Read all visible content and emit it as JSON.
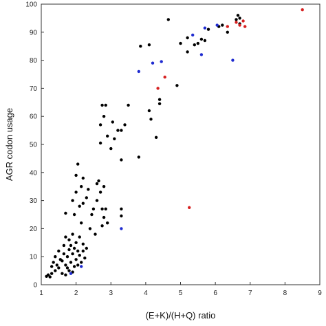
{
  "chart_data": {
    "type": "scatter",
    "title": "",
    "xlabel": "(E+K)/(H+Q) ratio",
    "ylabel": "AGR codon usage",
    "xlim": [
      1,
      9
    ],
    "ylim": [
      0,
      100
    ],
    "xticks": [
      "1",
      "2",
      "3",
      "4",
      "5",
      "6",
      "7",
      "8",
      "9"
    ],
    "yticks": [
      "0",
      "10",
      "20",
      "30",
      "40",
      "50",
      "60",
      "70",
      "80",
      "90",
      "100"
    ],
    "grid": false,
    "legend": "none",
    "series": [
      {
        "color": "#000000",
        "points": [
          [
            1.15,
            3.0
          ],
          [
            1.2,
            3.5
          ],
          [
            1.25,
            2.8
          ],
          [
            1.3,
            4.0
          ],
          [
            1.3,
            6.5
          ],
          [
            1.35,
            8.0
          ],
          [
            1.4,
            5.0
          ],
          [
            1.4,
            10.0
          ],
          [
            1.45,
            7.0
          ],
          [
            1.5,
            6.0
          ],
          [
            1.5,
            12.0
          ],
          [
            1.55,
            9.0
          ],
          [
            1.6,
            4.0
          ],
          [
            1.6,
            8.5
          ],
          [
            1.65,
            11.0
          ],
          [
            1.65,
            14.0
          ],
          [
            1.7,
            3.5
          ],
          [
            1.7,
            7.0
          ],
          [
            1.7,
            17.0
          ],
          [
            1.75,
            6.0
          ],
          [
            1.75,
            10.0
          ],
          [
            1.8,
            5.0
          ],
          [
            1.8,
            12.5
          ],
          [
            1.8,
            16.0
          ],
          [
            1.85,
            8.0
          ],
          [
            1.85,
            14.0
          ],
          [
            1.9,
            4.5
          ],
          [
            1.9,
            11.0
          ],
          [
            1.9,
            18.0
          ],
          [
            1.95,
            6.5
          ],
          [
            1.95,
            13.0
          ],
          [
            2.0,
            9.0
          ],
          [
            2.0,
            15.0
          ],
          [
            2.05,
            7.0
          ],
          [
            2.05,
            12.0
          ],
          [
            2.1,
            10.5
          ],
          [
            2.1,
            17.0
          ],
          [
            2.15,
            8.0
          ],
          [
            2.2,
            12.0
          ],
          [
            2.2,
            14.5
          ],
          [
            2.25,
            9.5
          ],
          [
            2.3,
            13.0
          ],
          [
            1.7,
            25.5
          ],
          [
            1.9,
            30.0
          ],
          [
            1.95,
            25.0
          ],
          [
            2.0,
            33.0
          ],
          [
            2.0,
            39.0
          ],
          [
            2.05,
            43.0
          ],
          [
            2.1,
            28.0
          ],
          [
            2.15,
            22.0
          ],
          [
            2.15,
            35.0
          ],
          [
            2.2,
            38.0
          ],
          [
            2.2,
            29.0
          ],
          [
            2.3,
            31.0
          ],
          [
            2.35,
            34.0
          ],
          [
            2.4,
            20.0
          ],
          [
            2.45,
            25.0
          ],
          [
            2.5,
            27.0
          ],
          [
            2.55,
            18.0
          ],
          [
            2.6,
            30.0
          ],
          [
            2.6,
            36.0
          ],
          [
            2.65,
            37.0
          ],
          [
            2.7,
            33.0
          ],
          [
            2.75,
            21.0
          ],
          [
            2.75,
            27.0
          ],
          [
            2.8,
            24.0
          ],
          [
            2.8,
            35.0
          ],
          [
            2.85,
            27.0
          ],
          [
            2.9,
            22.0
          ],
          [
            2.7,
            50.5
          ],
          [
            2.7,
            57.0
          ],
          [
            2.75,
            64.0
          ],
          [
            2.8,
            60.0
          ],
          [
            2.85,
            64.0
          ],
          [
            2.9,
            53.0
          ],
          [
            3.0,
            48.5
          ],
          [
            3.05,
            58.0
          ],
          [
            3.1,
            52.0
          ],
          [
            3.2,
            55.0
          ],
          [
            3.3,
            55.0
          ],
          [
            3.3,
            44.5
          ],
          [
            3.4,
            57.0
          ],
          [
            3.5,
            64.0
          ],
          [
            3.3,
            27.0
          ],
          [
            3.3,
            24.5
          ],
          [
            3.85,
            85.0
          ],
          [
            3.8,
            45.5
          ],
          [
            4.1,
            85.5
          ],
          [
            4.1,
            62.0
          ],
          [
            4.15,
            59.0
          ],
          [
            4.3,
            52.5
          ],
          [
            4.4,
            66.0
          ],
          [
            4.4,
            64.5
          ],
          [
            4.65,
            94.5
          ],
          [
            4.9,
            71.0
          ],
          [
            5.0,
            86.0
          ],
          [
            5.2,
            88.0
          ],
          [
            5.2,
            83.0
          ],
          [
            5.4,
            85.5
          ],
          [
            5.5,
            86.0
          ],
          [
            5.6,
            87.5
          ],
          [
            5.7,
            87.0
          ],
          [
            5.8,
            91.0
          ],
          [
            6.1,
            92.0
          ],
          [
            6.2,
            92.5
          ],
          [
            6.35,
            90.0
          ],
          [
            6.6,
            94.5
          ],
          [
            6.65,
            96.0
          ],
          [
            6.7,
            95.0
          ],
          [
            6.7,
            93.0
          ]
        ]
      },
      {
        "color": "#1f2bd0",
        "points": [
          [
            1.85,
            4.0
          ],
          [
            2.15,
            6.5
          ],
          [
            3.3,
            20.0
          ],
          [
            3.8,
            76.0
          ],
          [
            4.2,
            79.0
          ],
          [
            4.45,
            79.5
          ],
          [
            5.35,
            89.0
          ],
          [
            5.6,
            82.0
          ],
          [
            5.7,
            91.5
          ],
          [
            6.05,
            92.5
          ],
          [
            6.5,
            80.0
          ]
        ]
      },
      {
        "color": "#d62020",
        "points": [
          [
            4.35,
            70.0
          ],
          [
            4.55,
            74.0
          ],
          [
            5.25,
            27.5
          ],
          [
            6.35,
            92.0
          ],
          [
            6.6,
            93.5
          ],
          [
            6.7,
            92.5
          ],
          [
            6.8,
            94.0
          ],
          [
            6.85,
            92.0
          ],
          [
            8.5,
            98.0
          ]
        ]
      }
    ]
  }
}
